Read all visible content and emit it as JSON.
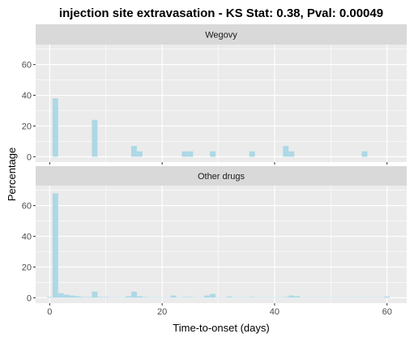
{
  "chart_data": {
    "type": "bar",
    "title": "injection site extravasation - KS Stat: 0.38, Pval: 0.00049",
    "xlabel": "Time-to-onset (days)",
    "ylabel": "Percentage",
    "xlim": [
      -2.5,
      63.5
    ],
    "ylim": [
      -3.5,
      73
    ],
    "x_ticks": [
      0,
      20,
      40,
      60
    ],
    "x_tick_labels": [
      "0",
      "20",
      "40",
      "60"
    ],
    "y_ticks": [
      0,
      20,
      40,
      60
    ],
    "y_tick_labels": [
      "0",
      "20",
      "40",
      "60"
    ],
    "grid": true,
    "bin_width": 1,
    "colors": {
      "bar": "#add8e6",
      "panel": "#ebebeb",
      "strip": "#d9d9d9",
      "grid": "#ffffff"
    },
    "facets": [
      {
        "label": "Wegovy",
        "x": [
          1,
          8,
          15,
          16,
          24,
          25,
          29,
          36,
          42,
          43,
          56
        ],
        "values": [
          38,
          24,
          7,
          3.5,
          3.5,
          3.5,
          3.5,
          3.5,
          7,
          3.5,
          3.5
        ]
      },
      {
        "label": "Other drugs",
        "x": [
          0,
          1,
          2,
          3,
          4,
          5,
          6,
          7,
          8,
          9,
          10,
          11,
          12,
          13,
          14,
          15,
          16,
          17,
          18,
          19,
          20,
          21,
          22,
          23,
          24,
          25,
          26,
          27,
          28,
          29,
          30,
          31,
          32,
          33,
          34,
          35,
          36,
          37,
          38,
          39,
          40,
          41,
          42,
          43,
          44,
          45,
          46,
          47,
          48,
          49,
          50,
          51,
          52,
          53,
          54,
          55,
          56,
          57,
          58,
          59,
          60
        ],
        "values": [
          0.5,
          68,
          3,
          2,
          1.5,
          1,
          0.5,
          0.5,
          4,
          0.5,
          0.5,
          0.3,
          0.3,
          0.3,
          1,
          4,
          1,
          0.5,
          0.3,
          0.3,
          0.3,
          0.3,
          1.5,
          0.3,
          0.5,
          0.5,
          0.3,
          0.3,
          1.5,
          2.5,
          0.3,
          0.3,
          0.8,
          0.3,
          0.3,
          0.3,
          0.5,
          0.3,
          0.3,
          0.3,
          0.3,
          0.3,
          0.5,
          1.5,
          1,
          0.3,
          0.3,
          0.3,
          0.3,
          0.3,
          0.3,
          0.3,
          0.3,
          0.3,
          0.3,
          0.3,
          0.3,
          0.3,
          0.3,
          0.3,
          0.8
        ]
      }
    ]
  }
}
